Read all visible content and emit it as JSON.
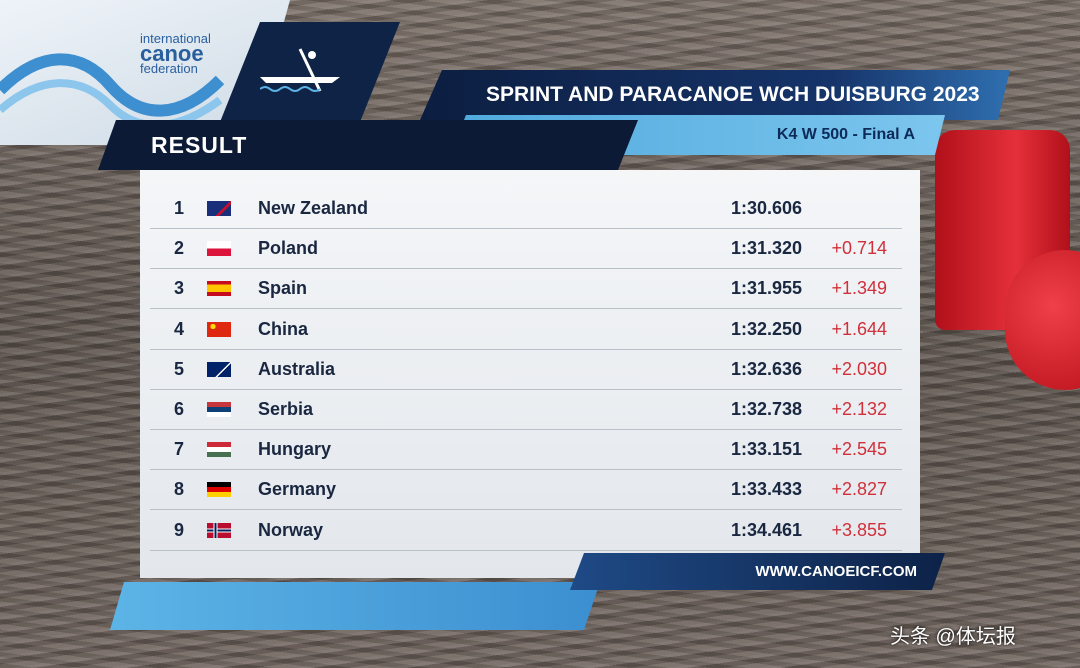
{
  "logo": {
    "line1": "international",
    "line2": "canoe",
    "line3": "federation"
  },
  "header": {
    "section": "RESULT",
    "title": "SPRINT AND PARACANOE WCH DUISBURG 2023",
    "event": "K4 W 500 - Final A"
  },
  "table": {
    "rows": [
      {
        "rank": "1",
        "country": "New Zealand",
        "time": "1:30.606"
      },
      {
        "rank": "2",
        "country": "Poland",
        "time": "1:31.320",
        "diff": "+0.714"
      },
      {
        "rank": "3",
        "country": "Spain",
        "time": "1:31.955",
        "diff": "+1.349"
      },
      {
        "rank": "4",
        "country": "China",
        "time": "1:32.250",
        "diff": "+1.644"
      },
      {
        "rank": "5",
        "country": "Australia",
        "time": "1:32.636",
        "diff": "+2.030"
      },
      {
        "rank": "6",
        "country": "Serbia",
        "time": "1:32.738",
        "diff": "+2.132"
      },
      {
        "rank": "7",
        "country": "Hungary",
        "time": "1:33.151",
        "diff": "+2.545"
      },
      {
        "rank": "8",
        "country": "Germany",
        "time": "1:33.433",
        "diff": "+2.827"
      },
      {
        "rank": "9",
        "country": "Norway",
        "time": "1:34.461",
        "diff": "+3.855"
      }
    ]
  },
  "footer": {
    "url": "WWW.CANOEICF.COM"
  },
  "watermark": "头条 @体坛报"
}
